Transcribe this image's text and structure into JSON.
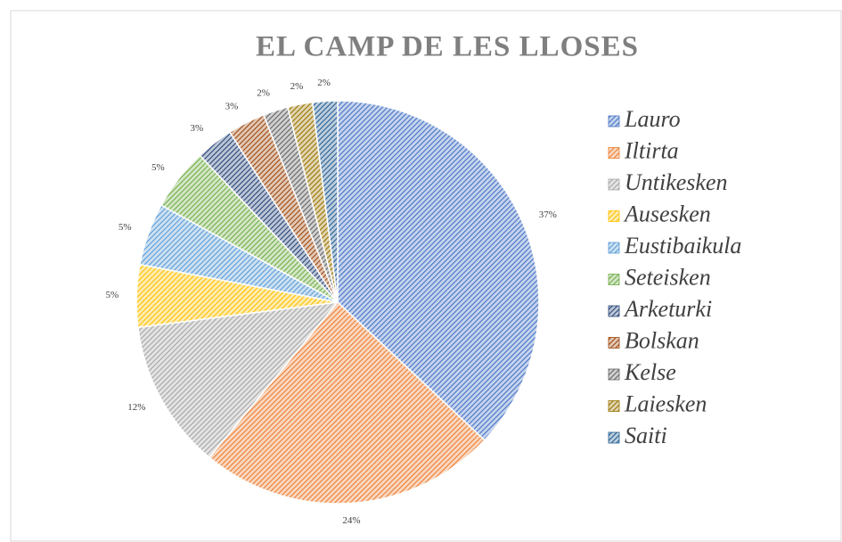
{
  "chart_data": {
    "type": "pie",
    "title": "EL CAMP DE LES LLOSES",
    "categories": [
      "Lauro",
      "Iltirta",
      "Untikesken",
      "Ausesken",
      "Eustibaikula",
      "Seteisken",
      "Arketurki",
      "Bolskan",
      "Kelse",
      "Laiesken",
      "Saiti"
    ],
    "values": [
      37,
      24,
      12,
      5,
      5,
      5,
      3,
      3,
      2,
      2,
      2
    ],
    "value_labels": [
      "37%",
      "24%",
      "12%",
      "5%",
      "5%",
      "5%",
      "3%",
      "3%",
      "2%",
      "2%",
      "2%"
    ],
    "colors": [
      "#4472c4",
      "#ed7d31",
      "#a5a5a5",
      "#ffc000",
      "#5b9bd5",
      "#70ad47",
      "#264478",
      "#9e480e",
      "#636363",
      "#997300",
      "#255e91"
    ],
    "legend": "right"
  }
}
